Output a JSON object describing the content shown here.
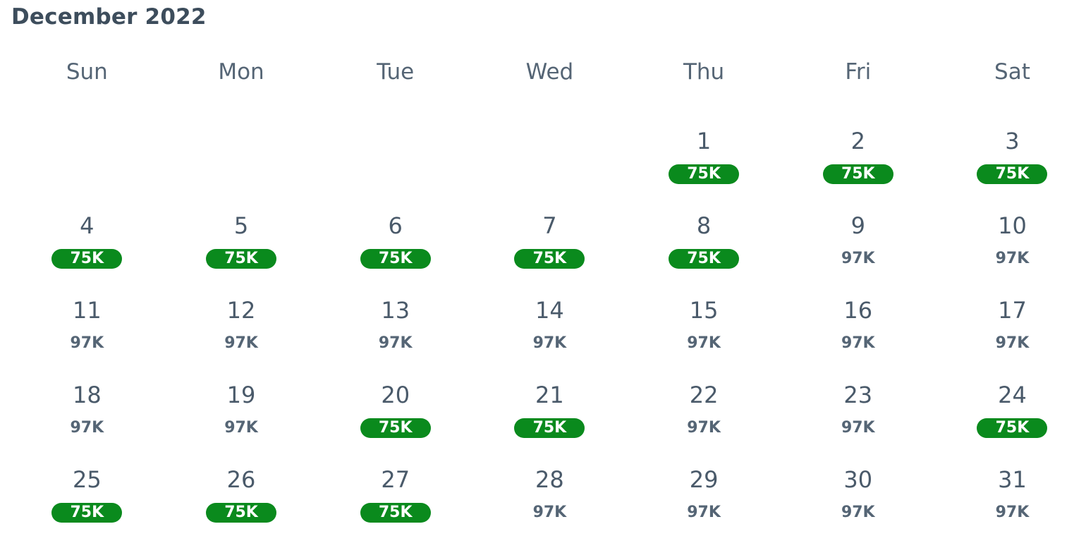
{
  "calendar": {
    "month_title": "December 2022",
    "weekdays": [
      "Sun",
      "Mon",
      "Tue",
      "Wed",
      "Thu",
      "Fri",
      "Sat"
    ],
    "low_color": "#0a8a1d",
    "days": [
      {
        "day": "",
        "price": ""
      },
      {
        "day": "",
        "price": ""
      },
      {
        "day": "",
        "price": ""
      },
      {
        "day": "",
        "price": ""
      },
      {
        "day": "1",
        "price": "75K",
        "low": true
      },
      {
        "day": "2",
        "price": "75K",
        "low": true
      },
      {
        "day": "3",
        "price": "75K",
        "low": true
      },
      {
        "day": "4",
        "price": "75K",
        "low": true
      },
      {
        "day": "5",
        "price": "75K",
        "low": true
      },
      {
        "day": "6",
        "price": "75K",
        "low": true
      },
      {
        "day": "7",
        "price": "75K",
        "low": true
      },
      {
        "day": "8",
        "price": "75K",
        "low": true
      },
      {
        "day": "9",
        "price": "97K",
        "low": false
      },
      {
        "day": "10",
        "price": "97K",
        "low": false
      },
      {
        "day": "11",
        "price": "97K",
        "low": false
      },
      {
        "day": "12",
        "price": "97K",
        "low": false
      },
      {
        "day": "13",
        "price": "97K",
        "low": false
      },
      {
        "day": "14",
        "price": "97K",
        "low": false
      },
      {
        "day": "15",
        "price": "97K",
        "low": false
      },
      {
        "day": "16",
        "price": "97K",
        "low": false
      },
      {
        "day": "17",
        "price": "97K",
        "low": false
      },
      {
        "day": "18",
        "price": "97K",
        "low": false
      },
      {
        "day": "19",
        "price": "97K",
        "low": false
      },
      {
        "day": "20",
        "price": "75K",
        "low": true
      },
      {
        "day": "21",
        "price": "75K",
        "low": true
      },
      {
        "day": "22",
        "price": "97K",
        "low": false
      },
      {
        "day": "23",
        "price": "97K",
        "low": false
      },
      {
        "day": "24",
        "price": "75K",
        "low": true
      },
      {
        "day": "25",
        "price": "75K",
        "low": true
      },
      {
        "day": "26",
        "price": "75K",
        "low": true
      },
      {
        "day": "27",
        "price": "75K",
        "low": true
      },
      {
        "day": "28",
        "price": "97K",
        "low": false
      },
      {
        "day": "29",
        "price": "97K",
        "low": false
      },
      {
        "day": "30",
        "price": "97K",
        "low": false
      },
      {
        "day": "31",
        "price": "97K",
        "low": false
      }
    ]
  }
}
